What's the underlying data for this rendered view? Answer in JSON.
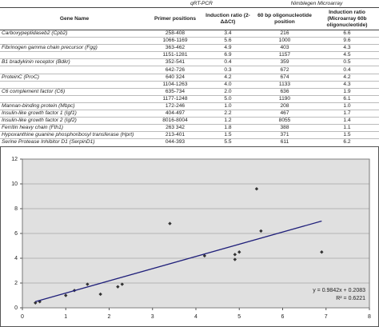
{
  "table": {
    "group_headers": [
      "qRT-PCR",
      "Nimblegen Microarray"
    ],
    "headers": [
      "Gene Name",
      "Primer positions",
      "Induction ratio (2-ΔΔCt)",
      "60 bp oligonucleotide position",
      "Induction ratio (Microarray 60b oligonucleotide)"
    ],
    "rows": [
      [
        "Carboxypeptidaseb2 (Cpb2)",
        "258-408",
        "3.4",
        "216",
        "6.6"
      ],
      [
        null,
        "1066-1169",
        "5.6",
        "1000",
        "9.6"
      ],
      [
        "Fibrinogen gamma chain precursor (Fgg)",
        "363-462",
        "4.9",
        "403",
        "4.3"
      ],
      [
        null,
        "1151-1281",
        "6.9",
        "1157",
        "4.5"
      ],
      [
        "B1 bradykinin receptor (Bdkr)",
        "352-541",
        "0.4",
        "359",
        "0.5"
      ],
      [
        null,
        "642-726",
        "0.3",
        "672",
        "0.4"
      ],
      [
        "ProteinC (ProC)",
        "640 324",
        "4.2",
        "674",
        "4.2"
      ],
      [
        null,
        "1104-1263",
        "4.0",
        "1133",
        "4.3"
      ],
      [
        "C6 complement factor (C6)",
        "635-734",
        "2.0",
        "636",
        "1.9"
      ],
      [
        null,
        "1177-1248",
        "5.0",
        "1190",
        "6.1"
      ],
      [
        "Mannan-binding protein (Mbpc)",
        "172-246",
        "1.0",
        "208",
        "1.0"
      ],
      [
        "Insulin-like growth factor 1 (Igf1)",
        "404-497",
        "2.2",
        "467",
        "1.7"
      ],
      [
        "Insulin-like growth factor 2 (Igf2)",
        "8016-8004",
        "1.2",
        "8055",
        "1.4"
      ],
      [
        "Ferritin heavy chain (Fth1)",
        "263 342",
        "1.8",
        "388",
        "1.1"
      ],
      [
        "Hypoxanthine guanine phosphoribosyl transferase (Hprt)",
        "213-401",
        "1.5",
        "371",
        "1.5"
      ],
      [
        "Serine Protease Inhibitor D1 (SerpinD1)",
        "044-393",
        "5.5",
        "611",
        "6.2"
      ]
    ]
  },
  "chart_data": {
    "type": "scatter",
    "x": [
      0.3,
      0.4,
      1.0,
      1.2,
      1.5,
      1.8,
      2.2,
      2.3,
      3.4,
      4.2,
      4.9,
      4.9,
      5.0,
      5.4,
      5.5,
      6.9
    ],
    "values": [
      0.4,
      0.5,
      1.0,
      1.4,
      1.9,
      1.1,
      1.7,
      1.9,
      6.8,
      4.2,
      4.3,
      3.9,
      4.5,
      9.6,
      6.2,
      4.5
    ],
    "color": "#333333",
    "xlim": [
      0,
      8
    ],
    "xticks": [
      0,
      1,
      2,
      3,
      4,
      5,
      6,
      7,
      8
    ],
    "ylim": [
      0,
      12
    ],
    "yticks": [
      0,
      2,
      4,
      6,
      8,
      10,
      12
    ],
    "grid": true,
    "trendline": {
      "slope": 0.9842,
      "intercept": 0.2083,
      "color": "#1f1f7a",
      "label": "y = 0.9842x + 0.2083",
      "r2_label": "R² = 0.6221"
    }
  }
}
